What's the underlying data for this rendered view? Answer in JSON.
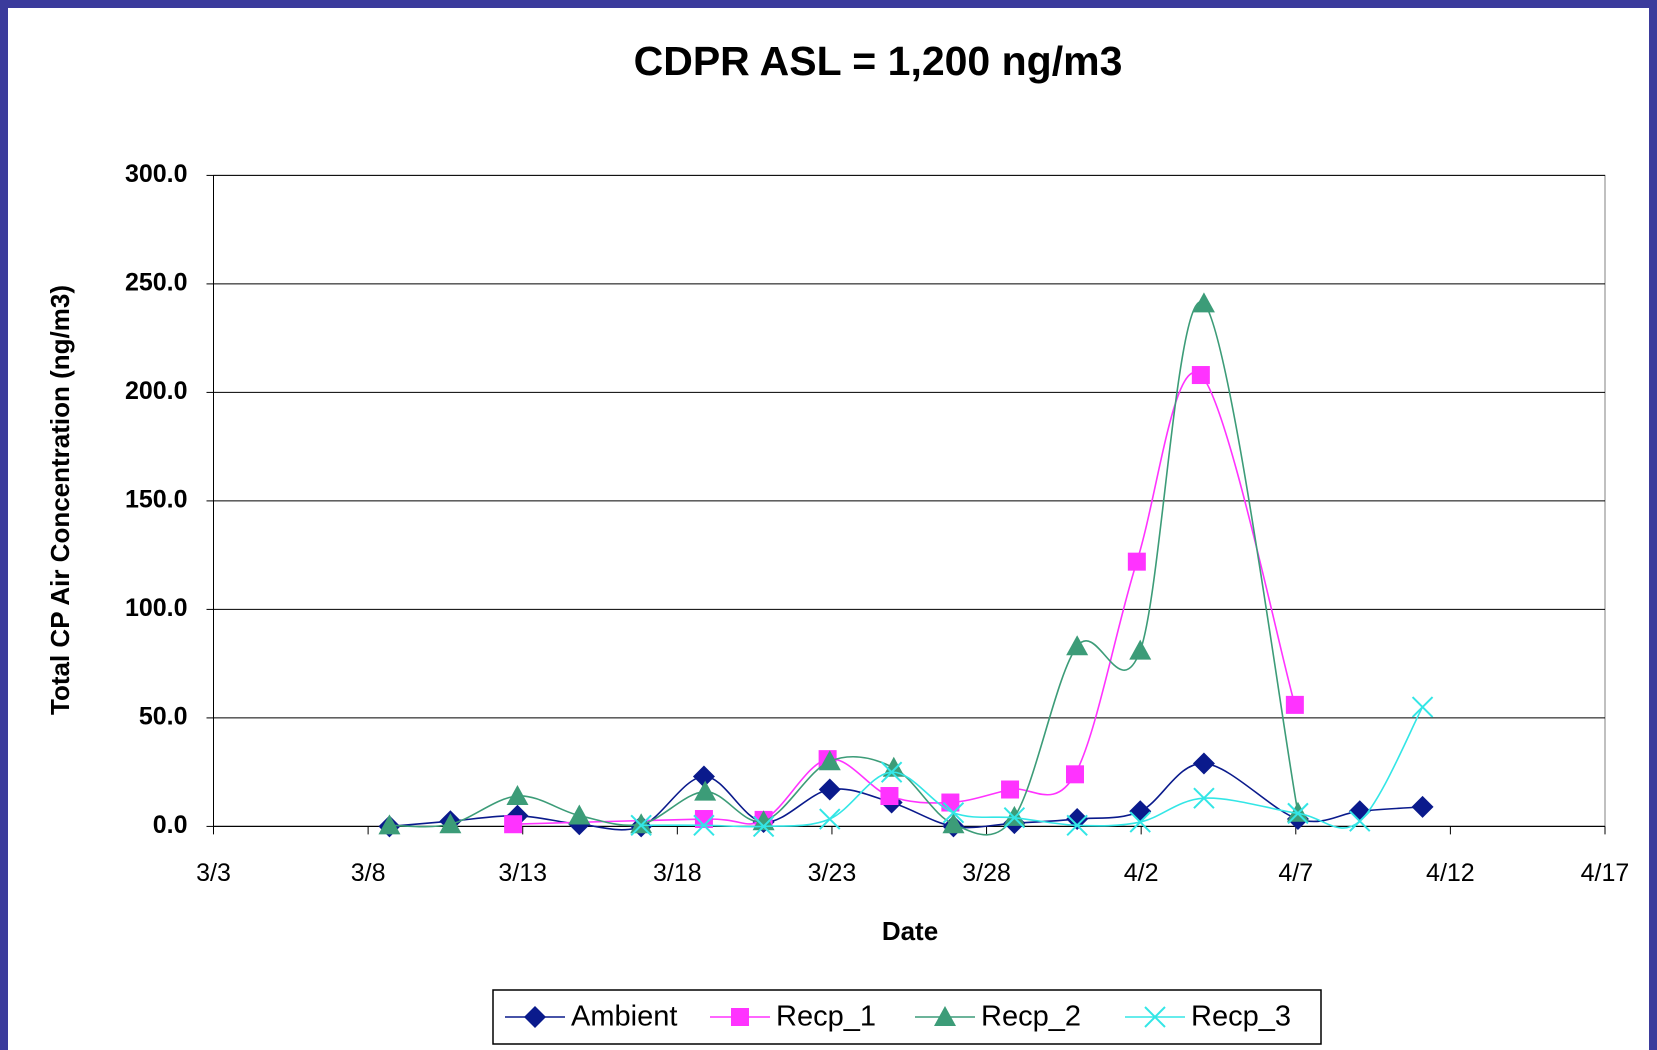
{
  "chart_data": {
    "type": "line",
    "title": "CDPR ASL = 1,200 ng/m3",
    "x_label": "Date",
    "y_label": "Total CP Air Concentration (ng/m3)",
    "xlim": [
      3,
      48
    ],
    "xticks": [
      {
        "value": 3,
        "label": "3/3"
      },
      {
        "value": 8,
        "label": "3/8"
      },
      {
        "value": 13,
        "label": "3/13"
      },
      {
        "value": 18,
        "label": "3/18"
      },
      {
        "value": 23,
        "label": "3/23"
      },
      {
        "value": 28,
        "label": "3/28"
      },
      {
        "value": 33,
        "label": "4/2"
      },
      {
        "value": 38,
        "label": "4/7"
      },
      {
        "value": 43,
        "label": "4/12"
      },
      {
        "value": 48,
        "label": "4/17"
      }
    ],
    "ylim": [
      0,
      300
    ],
    "yticks": [
      {
        "value": 0,
        "label": "0.0"
      },
      {
        "value": 50,
        "label": "50.0"
      },
      {
        "value": 100,
        "label": "100.0"
      },
      {
        "value": 150,
        "label": "150.0"
      },
      {
        "value": 200,
        "label": "200.0"
      },
      {
        "value": 250,
        "label": "250.0"
      },
      {
        "value": 300,
        "label": "300.0"
      }
    ],
    "grid": true,
    "legend": "bottom",
    "series": [
      {
        "name": "Ambient",
        "color": "#0a1a8c",
        "marker": "diamond",
        "x": [
          8.69,
          10.66,
          12.83,
          14.83,
          16.83,
          18.86,
          20.79,
          22.93,
          24.93,
          26.93,
          28.9,
          30.93,
          32.97,
          35.03,
          38.07,
          40.07,
          42.1
        ],
        "values": [
          0,
          2.4,
          4.9,
          1,
          0,
          23,
          2,
          17,
          11,
          0,
          1.5,
          3.4,
          7,
          29,
          3.4,
          7,
          9
        ]
      },
      {
        "name": "Recp_1",
        "color": "#ff33ff",
        "marker": "square",
        "x": [
          12.69,
          18.86,
          20.79,
          22.86,
          24.86,
          26.83,
          28.76,
          30.86,
          32.86,
          34.93,
          37.97
        ],
        "values": [
          1,
          3.4,
          3,
          31,
          14,
          11,
          17,
          24,
          122,
          208,
          56
        ]
      },
      {
        "name": "Recp_2",
        "color": "#3c9c78",
        "marker": "triangle",
        "x": [
          8.69,
          10.66,
          12.83,
          14.83,
          16.83,
          18.9,
          20.79,
          22.93,
          25,
          26.93,
          28.9,
          30.93,
          32.97,
          35.03,
          38.07
        ],
        "values": [
          0.5,
          1,
          14,
          5,
          1,
          16,
          2.4,
          30,
          27,
          1,
          4.4,
          83,
          81,
          241,
          6.3
        ]
      },
      {
        "name": "Recp_3",
        "color": "#33e6e6",
        "marker": "x",
        "x": [
          16.83,
          18.86,
          20.79,
          22.93,
          24.93,
          26.93,
          28.9,
          30.93,
          32.97,
          35.03,
          38.07,
          40.07,
          42.1
        ],
        "values": [
          0.5,
          0.5,
          0,
          3.4,
          25,
          6.3,
          4,
          0.5,
          2,
          13,
          6,
          2.4,
          55
        ]
      }
    ]
  }
}
